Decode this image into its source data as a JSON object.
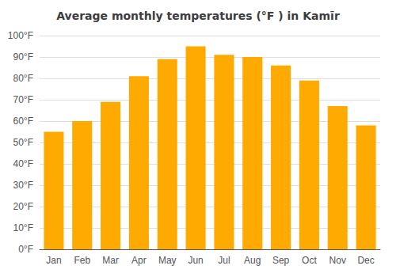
{
  "chart_data": {
    "type": "bar",
    "title": "Average monthly temperatures (°F ) in Kamīr",
    "categories": [
      "Jan",
      "Feb",
      "Mar",
      "Apr",
      "May",
      "Jun",
      "Jul",
      "Aug",
      "Sep",
      "Oct",
      "Nov",
      "Dec"
    ],
    "values": [
      55,
      60,
      69,
      81,
      89,
      95,
      91,
      90,
      86,
      79,
      67,
      58
    ],
    "color": "#FFAA00",
    "ylim": [
      0,
      100
    ],
    "yticks": [
      {
        "value": 0,
        "label": "0°F"
      },
      {
        "value": 10,
        "label": "10°F"
      },
      {
        "value": 20,
        "label": "20°F"
      },
      {
        "value": 30,
        "label": "30°F"
      },
      {
        "value": 40,
        "label": "40°F"
      },
      {
        "value": 50,
        "label": "50°F"
      },
      {
        "value": 60,
        "label": "60°F"
      },
      {
        "value": 70,
        "label": "70°F"
      },
      {
        "value": 80,
        "label": "80°F"
      },
      {
        "value": 90,
        "label": "90°F"
      },
      {
        "value": 100,
        "label": "100°F"
      }
    ],
    "grid": true
  }
}
